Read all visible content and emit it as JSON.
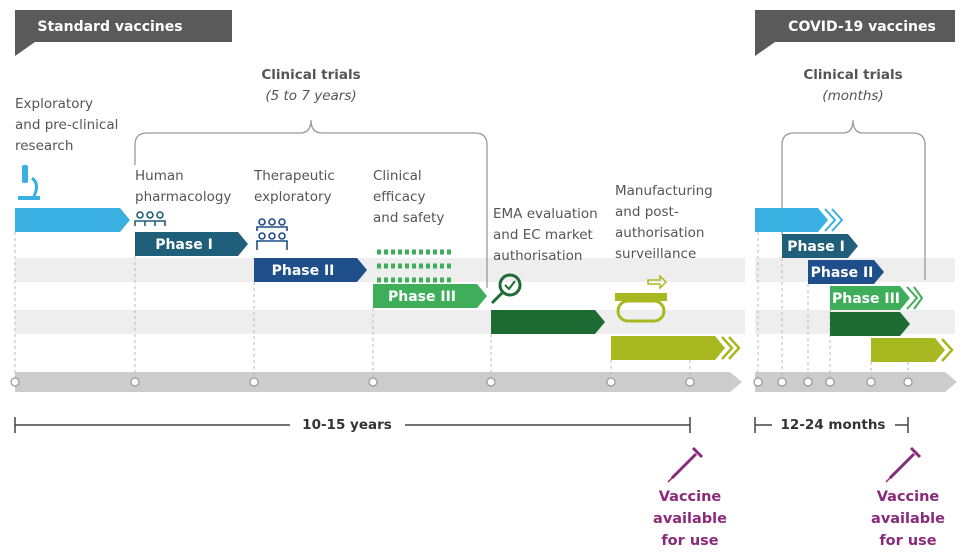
{
  "standard": {
    "tab": "Standard vaccines",
    "clinical_trials": {
      "title": "Clinical trials",
      "duration": "(5 to 7 years)"
    },
    "stages": [
      {
        "label": [
          "Exploratory",
          "and pre-clinical",
          "research"
        ]
      },
      {
        "label": [
          "Human",
          "pharmacology"
        ],
        "phase": "Phase I"
      },
      {
        "label": [
          "Therapeutic",
          "exploratory"
        ],
        "phase": "Phase II"
      },
      {
        "label": [
          "Clinical",
          "efficacy",
          "and safety"
        ],
        "phase": "Phase III"
      },
      {
        "label": [
          "EMA evaluation",
          "and EC market",
          "authorisation"
        ]
      },
      {
        "label": [
          "Manufacturing",
          "and post-",
          "authorisation",
          "surveillance"
        ]
      }
    ],
    "span": "10-15 years",
    "available": [
      "Vaccine",
      "available",
      "for use"
    ]
  },
  "covid": {
    "tab": "COVID-19 vaccines",
    "clinical_trials": {
      "title": "Clinical trials",
      "duration": "(months)"
    },
    "phases": [
      "Phase I",
      "Phase II",
      "Phase III"
    ],
    "span": "12-24 months",
    "available": [
      "Vaccine",
      "available",
      "for use"
    ]
  }
}
